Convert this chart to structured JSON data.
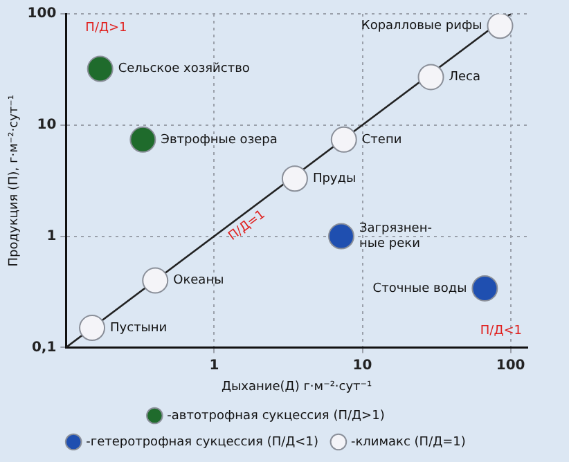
{
  "chart_data": {
    "type": "scatter",
    "xlabel": "Дыхание(Д) г·м⁻²·сут⁻¹",
    "ylabel": "Продукция (П), г·м⁻²·сут⁻¹",
    "xlim": [
      0.1,
      130
    ],
    "ylim": [
      0.1,
      100
    ],
    "xticks": [
      1,
      10,
      100
    ],
    "yticks": [
      {
        "value": 0.1,
        "label": "0,1"
      },
      1,
      10,
      100
    ],
    "log": "xy",
    "grid": true,
    "marker": "circle",
    "legend": "bottom",
    "series": [
      {
        "name": "-автотрофная сукцессия (П/Д>1)",
        "color": "#1f6b2c",
        "x": [
          0.17,
          0.33
        ],
        "values": [
          32,
          7.4
        ]
      },
      {
        "name": "-гетеротрофная сукцессия (П/Д<1)",
        "color": "#1f4fb0",
        "x": [
          7.2,
          67
        ],
        "values": [
          1.0,
          0.34
        ]
      },
      {
        "name": "-климакс (П/Д=1)",
        "color": "#f4f4f8",
        "x": [
          0.15,
          0.4,
          3.5,
          7.5,
          29,
          85
        ],
        "values": [
          0.15,
          0.4,
          3.3,
          7.4,
          27,
          78
        ]
      },
      {
        "type": "line",
        "color": "#222222",
        "marker": "none",
        "x": [
          0.1,
          100
        ],
        "values": [
          0.1,
          100
        ]
      }
    ],
    "annotations": [
      {
        "text": "Сельское хозяйство",
        "x": 0.17,
        "y": 32
      },
      {
        "text": "Эвтрофные озера",
        "x": 0.33,
        "y": 7.4
      },
      {
        "text": "Загрязнен-ные реки",
        "x": 7.2,
        "y": 1.0
      },
      {
        "text": "Сточные воды",
        "x": 67,
        "y": 0.34
      },
      {
        "text": "Пустыни",
        "x": 0.15,
        "y": 0.15
      },
      {
        "text": "Океаны",
        "x": 0.4,
        "y": 0.4
      },
      {
        "text": "Пруды",
        "x": 3.5,
        "y": 3.3
      },
      {
        "text": "Степи",
        "x": 7.5,
        "y": 7.4
      },
      {
        "text": "Леса",
        "x": 29,
        "y": 27
      },
      {
        "text": "Коралловые рифы",
        "x": 85,
        "y": 78
      },
      "П/Д>1",
      {
        "text": "П/Д=1",
        "x": 1.5,
        "y": 1.5
      },
      "П/Д<1"
    ]
  }
}
